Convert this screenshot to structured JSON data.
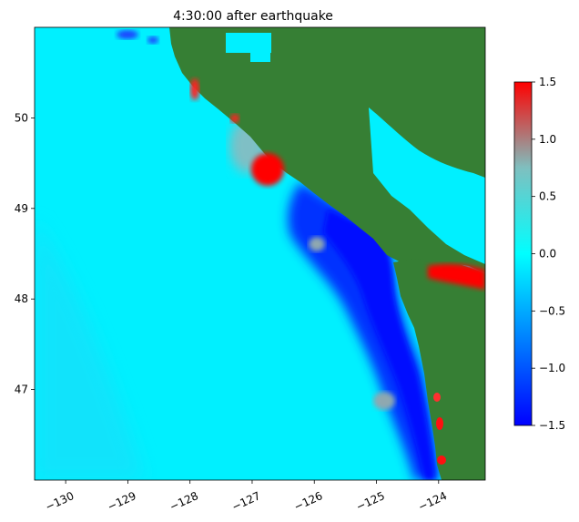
{
  "title": "4:30:00 after earthquake",
  "map": {
    "lon_range": [
      -130.5,
      -123.25
    ],
    "lat_range": [
      46.0,
      51.0
    ],
    "x_ticks": [
      {
        "value": -130,
        "label": "−130"
      },
      {
        "value": -129,
        "label": "−129"
      },
      {
        "value": -128,
        "label": "−128"
      },
      {
        "value": -127,
        "label": "−127"
      },
      {
        "value": -126,
        "label": "−126"
      },
      {
        "value": -125,
        "label": "−125"
      },
      {
        "value": -124,
        "label": "−124"
      }
    ],
    "y_ticks": [
      {
        "value": 47,
        "label": "47"
      },
      {
        "value": 48,
        "label": "48"
      },
      {
        "value": 49,
        "label": "49"
      },
      {
        "value": 50,
        "label": "50"
      }
    ],
    "land_color": "#367f34",
    "ocean_color": "#00f0ff"
  },
  "colorbar": {
    "range": [
      -1.5,
      1.5
    ],
    "ticks": [
      {
        "value": 1.5,
        "label": "1.5"
      },
      {
        "value": 1.0,
        "label": "1.0"
      },
      {
        "value": 0.5,
        "label": "0.5"
      },
      {
        "value": 0.0,
        "label": "0.0"
      },
      {
        "value": -0.5,
        "label": "−0.5"
      },
      {
        "value": -1.0,
        "label": "−1.0"
      },
      {
        "value": -1.5,
        "label": "−1.5"
      }
    ],
    "colors": [
      "#0000ff",
      "#00ffff",
      "#ff0000"
    ]
  }
}
